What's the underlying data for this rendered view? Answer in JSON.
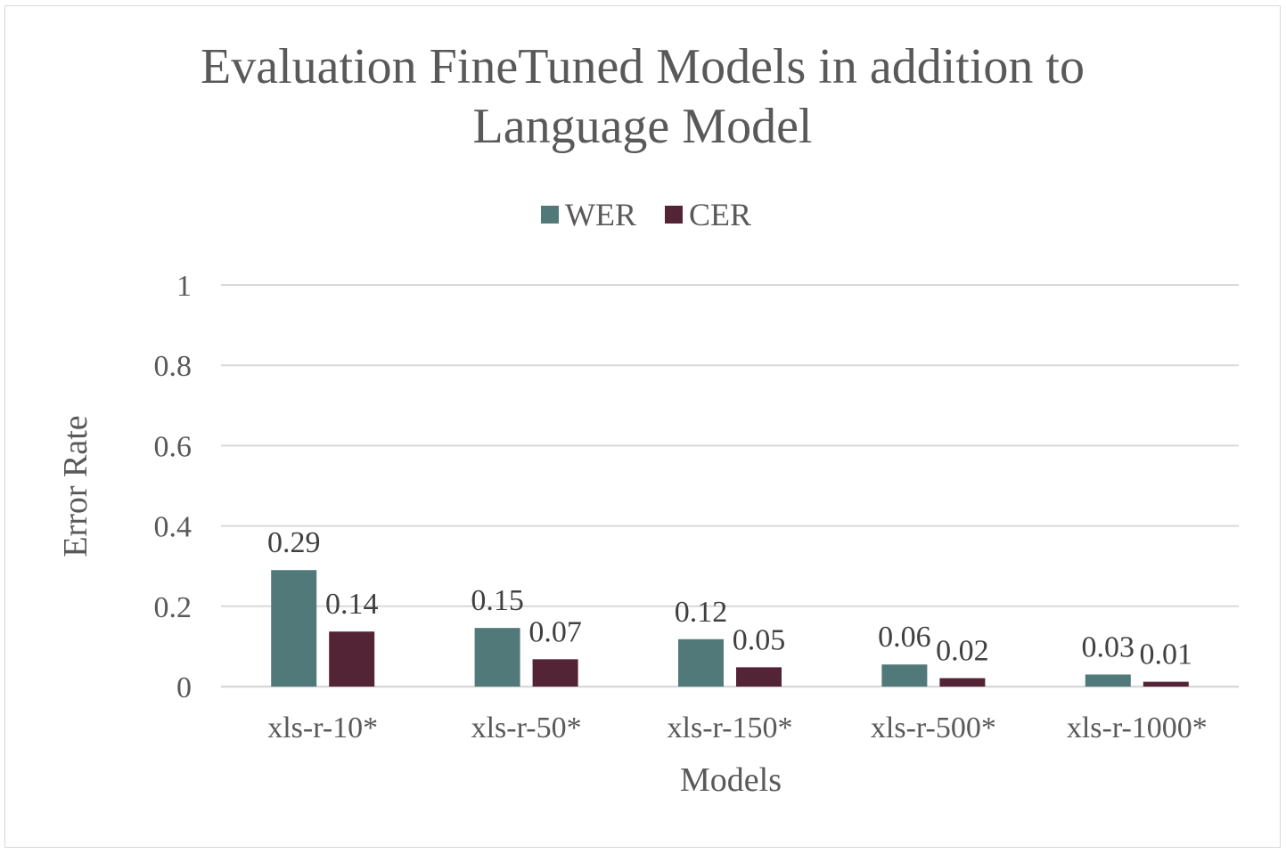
{
  "chart_data": {
    "type": "bar",
    "title": [
      "Evaluation FineTuned Models in addition to",
      "Language Model"
    ],
    "xlabel": "Models",
    "ylabel": "Error Rate",
    "ylim": [
      0,
      1
    ],
    "yticks": [
      "0",
      "0.2",
      "0.4",
      "0.6",
      "0.8",
      "1"
    ],
    "ytick_values": [
      0,
      0.2,
      0.4,
      0.6,
      0.8,
      1
    ],
    "grid": true,
    "legend_position": "top-center",
    "categories": [
      "xls-r-10*",
      "xls-r-50*",
      "xls-r-150*",
      "xls-r-500*",
      "xls-r-1000*"
    ],
    "series": [
      {
        "name": "WER",
        "color": "#52797a",
        "values": [
          0.29,
          0.146,
          0.118,
          0.055,
          0.03
        ],
        "labels": [
          "0.29",
          "0.15",
          "0.12",
          "0.06",
          "0.03"
        ]
      },
      {
        "name": "CER",
        "color": "#532435",
        "values": [
          0.137,
          0.068,
          0.048,
          0.021,
          0.012
        ],
        "labels": [
          "0.14",
          "0.07",
          "0.05",
          "0.02",
          "0.01"
        ]
      }
    ]
  }
}
